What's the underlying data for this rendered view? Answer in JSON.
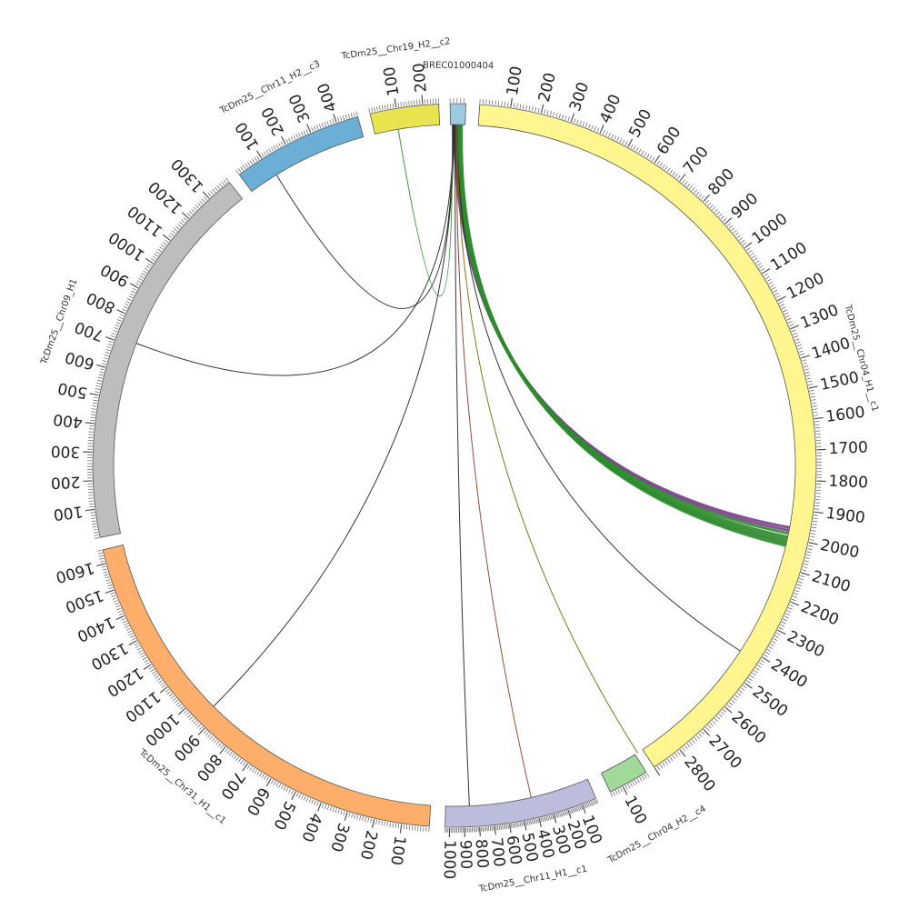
{
  "diagram": {
    "type": "circos",
    "tick_step": 100,
    "minor_tick_step": 10,
    "sequences": [
      {
        "name": "BREC01000404",
        "length": 45,
        "color": "#9ecae1",
        "start_deg": 359.3,
        "end_deg": 1.8,
        "labels": []
      },
      {
        "name": "TcDm25__Chr04_H1__c1",
        "length": 2900,
        "color": "#fff68f",
        "start_deg": 4.0,
        "end_deg": 146.5,
        "labels": [
          "100",
          "200",
          "300",
          "400",
          "500",
          "600",
          "700",
          "800",
          "900",
          "1000",
          "1100",
          "1200",
          "1300",
          "1400",
          "1500",
          "1600",
          "1700",
          "1800",
          "1900",
          "2000",
          "2100",
          "2200",
          "2300",
          "2400",
          "2500",
          "2600",
          "2700",
          "2800"
        ]
      },
      {
        "name": "TcDm25__Chr04_H2__c4",
        "length": 150,
        "color": "#a1d99b",
        "start_deg": 148.0,
        "end_deg": 154.5,
        "labels": [
          "100"
        ]
      },
      {
        "name": "TcDm25__Chr11_H1__c1",
        "length": 1030,
        "color": "#bcbddc",
        "start_deg": 157.0,
        "end_deg": 181.5,
        "labels": [
          "100",
          "200",
          "300",
          "400",
          "500",
          "600",
          "700",
          "800",
          "900",
          "1000"
        ]
      },
      {
        "name": "TcDm25__Chr31_H1__c1",
        "length": 1650,
        "color": "#fdae6b",
        "start_deg": 184.0,
        "end_deg": 256.5,
        "labels": [
          "100",
          "200",
          "300",
          "400",
          "500",
          "600",
          "700",
          "800",
          "900",
          "1000",
          "1100",
          "1200",
          "1300",
          "1400",
          "1500",
          "1600"
        ]
      },
      {
        "name": "TcDm25__Chr09_H1",
        "length": 1390,
        "color": "#bdbdbd",
        "start_deg": 258.5,
        "end_deg": 321.5,
        "labels": [
          "100",
          "200",
          "300",
          "400",
          "500",
          "600",
          "700",
          "800",
          "900",
          "1000",
          "1100",
          "1200",
          "1300"
        ]
      },
      {
        "name": "TcDm25__Chr11_H2__c3",
        "length": 480,
        "color": "#6baed6",
        "start_deg": 323.5,
        "end_deg": 344.5,
        "labels": [
          "100",
          "200",
          "300",
          "400"
        ]
      },
      {
        "name": "TcDm25__Chr19_H2__c2",
        "length": 260,
        "color": "#e7e44f",
        "start_deg": 346.5,
        "end_deg": 357.5,
        "labels": [
          "100",
          "200"
        ]
      }
    ],
    "links": [
      {
        "from_deg": 0.0,
        "to_deg": 100.5,
        "color": "#7b3f8c",
        "thickness": 3
      },
      {
        "from_deg": 0.2,
        "to_deg": 101.0,
        "color": "#7b3f8c",
        "thickness": 3
      },
      {
        "from_deg": 0.4,
        "to_deg": 101.5,
        "color": "#2e8b2e",
        "thickness": 3
      },
      {
        "from_deg": 0.6,
        "to_deg": 102.2,
        "color": "#2e8b2e",
        "thickness": 4
      },
      {
        "from_deg": 0.8,
        "to_deg": 102.8,
        "color": "#2e8b2e",
        "thickness": 4
      },
      {
        "from_deg": 1.0,
        "to_deg": 103.2,
        "color": "#2e8b2e",
        "thickness": 3
      },
      {
        "from_deg": 1.2,
        "to_deg": 103.6,
        "color": "#2e8b2e",
        "thickness": 3
      },
      {
        "from_deg": 0.5,
        "to_deg": 123.0,
        "color": "#1f1f1f",
        "thickness": 1
      },
      {
        "from_deg": 0.5,
        "to_deg": 147.5,
        "color": "#6b6b00",
        "thickness": 1
      },
      {
        "from_deg": 0.3,
        "to_deg": 167.0,
        "color": "#8b3a2a",
        "thickness": 1
      },
      {
        "from_deg": 0.1,
        "to_deg": 177.5,
        "color": "#1f1f1f",
        "thickness": 1
      },
      {
        "from_deg": 359.9,
        "to_deg": 225.0,
        "color": "#1f1f1f",
        "thickness": 1
      },
      {
        "from_deg": 359.8,
        "to_deg": 291.0,
        "color": "#1f1f1f",
        "thickness": 1
      },
      {
        "from_deg": 359.7,
        "to_deg": 328.5,
        "color": "#1f1f1f",
        "thickness": 1
      },
      {
        "from_deg": 359.6,
        "to_deg": 350.5,
        "color": "#2e8b2e",
        "thickness": 1
      }
    ]
  }
}
